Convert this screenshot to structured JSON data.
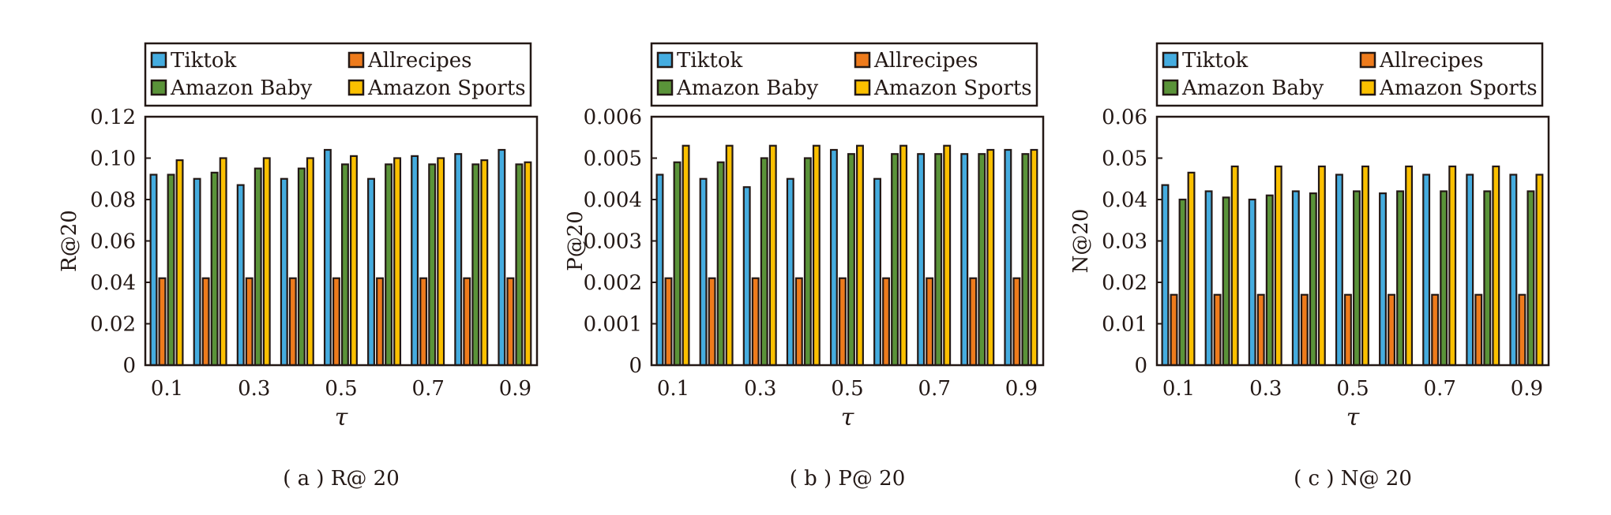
{
  "chart_data": [
    {
      "type": "bar",
      "caption": "( a ) R@ 20",
      "ylabel": "R@20",
      "xlabel": "τ",
      "categories": [
        "0.1",
        "0.2",
        "0.3",
        "0.4",
        "0.5",
        "0.6",
        "0.7",
        "0.8",
        "0.9"
      ],
      "xtick_labels": [
        "0.1",
        "0.3",
        "0.5",
        "0.7",
        "0.9"
      ],
      "ylim": [
        0,
        0.12
      ],
      "yticks": [
        "0",
        "0.02",
        "0.04",
        "0.06",
        "0.08",
        "0.10",
        "0.12"
      ],
      "ytick_values": [
        0,
        0.02,
        0.04,
        0.06,
        0.08,
        0.1,
        0.12
      ],
      "legend": "top-outside",
      "series": [
        {
          "name": "Tiktok",
          "color": "#45acdf",
          "values": [
            0.092,
            0.09,
            0.087,
            0.09,
            0.104,
            0.09,
            0.101,
            0.102,
            0.104
          ]
        },
        {
          "name": "Allrecipes",
          "color": "#ee7b1c",
          "values": [
            0.042,
            0.042,
            0.042,
            0.042,
            0.042,
            0.042,
            0.042,
            0.042,
            0.042
          ]
        },
        {
          "name": "Amazon Baby",
          "color": "#5a9339",
          "values": [
            0.092,
            0.093,
            0.095,
            0.095,
            0.097,
            0.097,
            0.097,
            0.097,
            0.097
          ]
        },
        {
          "name": "Amazon Sports",
          "color": "#fbc000",
          "values": [
            0.099,
            0.1,
            0.1,
            0.1,
            0.101,
            0.1,
            0.1,
            0.099,
            0.098
          ]
        }
      ]
    },
    {
      "type": "bar",
      "caption": "( b ) P@ 20",
      "ylabel": "P@20",
      "xlabel": "τ",
      "categories": [
        "0.1",
        "0.2",
        "0.3",
        "0.4",
        "0.5",
        "0.6",
        "0.7",
        "0.8",
        "0.9"
      ],
      "xtick_labels": [
        "0.1",
        "0.3",
        "0.5",
        "0.7",
        "0.9"
      ],
      "ylim": [
        0,
        0.006
      ],
      "yticks": [
        "0",
        "0.001",
        "0.002",
        "0.003",
        "0.004",
        "0.005",
        "0.006"
      ],
      "ytick_values": [
        0,
        0.001,
        0.002,
        0.003,
        0.004,
        0.005,
        0.006
      ],
      "legend": "top-outside",
      "series": [
        {
          "name": "Tiktok",
          "color": "#45acdf",
          "values": [
            0.0046,
            0.0045,
            0.0043,
            0.0045,
            0.0052,
            0.0045,
            0.0051,
            0.0051,
            0.0052
          ]
        },
        {
          "name": "Allrecipes",
          "color": "#ee7b1c",
          "values": [
            0.0021,
            0.0021,
            0.0021,
            0.0021,
            0.0021,
            0.0021,
            0.0021,
            0.0021,
            0.0021
          ]
        },
        {
          "name": "Amazon Baby",
          "color": "#5a9339",
          "values": [
            0.0049,
            0.0049,
            0.005,
            0.005,
            0.0051,
            0.0051,
            0.0051,
            0.0051,
            0.0051
          ]
        },
        {
          "name": "Amazon Sports",
          "color": "#fbc000",
          "values": [
            0.0053,
            0.0053,
            0.0053,
            0.0053,
            0.0053,
            0.0053,
            0.0053,
            0.0052,
            0.0052
          ]
        }
      ]
    },
    {
      "type": "bar",
      "caption": "( c ) N@ 20",
      "ylabel": "N@20",
      "xlabel": "τ",
      "categories": [
        "0.1",
        "0.2",
        "0.3",
        "0.4",
        "0.5",
        "0.6",
        "0.7",
        "0.8",
        "0.9"
      ],
      "xtick_labels": [
        "0.1",
        "0.3",
        "0.5",
        "0.7",
        "0.9"
      ],
      "ylim": [
        0,
        0.06
      ],
      "yticks": [
        "0",
        "0.01",
        "0.02",
        "0.03",
        "0.04",
        "0.05",
        "0.06"
      ],
      "ytick_values": [
        0,
        0.01,
        0.02,
        0.03,
        0.04,
        0.05,
        0.06
      ],
      "legend": "top-outside",
      "series": [
        {
          "name": "Tiktok",
          "color": "#45acdf",
          "values": [
            0.0435,
            0.042,
            0.04,
            0.042,
            0.046,
            0.0415,
            0.046,
            0.046,
            0.046
          ]
        },
        {
          "name": "Allrecipes",
          "color": "#ee7b1c",
          "values": [
            0.017,
            0.017,
            0.017,
            0.017,
            0.017,
            0.017,
            0.017,
            0.017,
            0.017
          ]
        },
        {
          "name": "Amazon Baby",
          "color": "#5a9339",
          "values": [
            0.04,
            0.0405,
            0.041,
            0.0415,
            0.042,
            0.042,
            0.042,
            0.042,
            0.042
          ]
        },
        {
          "name": "Amazon Sports",
          "color": "#fbc000",
          "values": [
            0.0465,
            0.048,
            0.048,
            0.048,
            0.048,
            0.048,
            0.048,
            0.048,
            0.046
          ]
        }
      ]
    }
  ]
}
